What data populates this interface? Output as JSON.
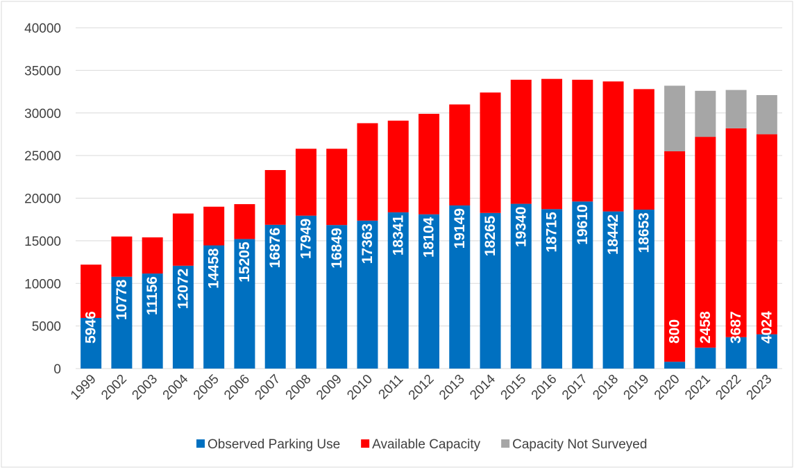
{
  "chart_data": {
    "type": "stacked_bar",
    "categories": [
      "1999",
      "2002",
      "2003",
      "2004",
      "2005",
      "2006",
      "2007",
      "2008",
      "2009",
      "2010",
      "2011",
      "2012",
      "2013",
      "2014",
      "2015",
      "2016",
      "2017",
      "2018",
      "2019",
      "2020",
      "2021",
      "2022",
      "2023"
    ],
    "series": [
      {
        "name": "Observed Parking Use",
        "color": "#0070c0",
        "values": [
          5946,
          10778,
          11156,
          12072,
          14458,
          15205,
          16876,
          17949,
          16849,
          17363,
          18341,
          18104,
          19149,
          18265,
          19340,
          18715,
          19610,
          18442,
          18653,
          800,
          2458,
          3687,
          4024
        ]
      },
      {
        "name": "Available Capacity",
        "color": "#ff0000",
        "values": [
          6254,
          4722,
          4244,
          6128,
          4542,
          4095,
          6424,
          7851,
          8951,
          11437,
          10759,
          11796,
          11851,
          14135,
          14560,
          15285,
          14290,
          15258,
          14147,
          24700,
          24742,
          24513,
          23476
        ]
      },
      {
        "name": "Capacity Not Surveyed",
        "color": "#a6a6a6",
        "values": [
          null,
          null,
          null,
          null,
          null,
          null,
          null,
          null,
          null,
          null,
          null,
          null,
          null,
          null,
          null,
          null,
          null,
          null,
          null,
          7700,
          5400,
          4500,
          4600
        ]
      }
    ],
    "ylim": [
      0,
      40000
    ],
    "yticks": [
      0,
      5000,
      10000,
      15000,
      20000,
      25000,
      30000,
      35000,
      40000
    ],
    "grid": true,
    "legend": "bottom"
  }
}
